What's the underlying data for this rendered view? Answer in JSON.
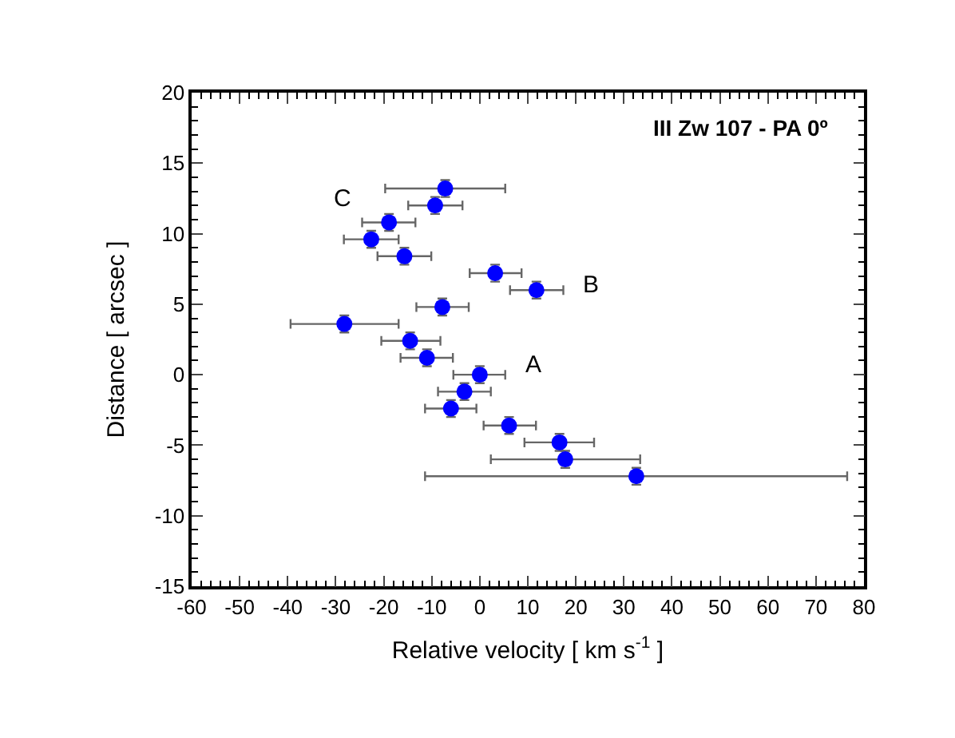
{
  "chart_data": {
    "type": "scatter",
    "title": "III Zw 107 - PA 0º",
    "xlabel": "Relative velocity [ km s$^{-1}$ ]",
    "ylabel": "Distance [ arcsec ]",
    "x": [
      -7.2,
      -9.3,
      -18.9,
      -22.6,
      -15.7,
      3.2,
      11.8,
      -7.8,
      -28.2,
      -14.5,
      -11.0,
      0.0,
      -3.2,
      -6.0,
      6.1,
      16.6,
      17.8,
      32.6
    ],
    "series": [
      {
        "color": "#0000ff",
        "values": [
          13.2,
          12.0,
          10.8,
          9.6,
          8.4,
          7.2,
          6.0,
          4.8,
          3.6,
          2.4,
          1.2,
          0.0,
          -1.2,
          -2.4,
          -3.6,
          -4.8,
          -6.0,
          -7.2
        ],
        "errors": [
          0.6,
          0.6,
          0.6,
          0.6,
          0.6,
          0.6,
          0.6,
          0.6,
          0.6,
          0.6,
          0.6,
          0.6,
          0.6,
          0.6,
          0.6,
          0.6,
          0.6,
          0.6
        ],
        "xerrors": [
          [
            -19.7,
            5.3
          ],
          [
            -14.9,
            -3.6
          ],
          [
            -24.5,
            -13.4
          ],
          [
            -28.3,
            -16.9
          ],
          [
            -21.3,
            -10.1
          ],
          [
            -2.1,
            8.7
          ],
          [
            6.3,
            17.4
          ],
          [
            -13.2,
            -2.3
          ],
          [
            -39.4,
            -16.9
          ],
          [
            -20.5,
            -8.2
          ],
          [
            -16.5,
            -5.6
          ],
          [
            -5.5,
            5.3
          ],
          [
            -8.7,
            2.3
          ],
          [
            -11.4,
            -0.7
          ],
          [
            0.8,
            11.7
          ],
          [
            9.3,
            23.8
          ],
          [
            2.3,
            33.4
          ],
          [
            -11.4,
            76.5
          ]
        ]
      }
    ],
    "annotations": [
      "C",
      "B",
      "A"
    ],
    "xlim": [
      -60,
      80
    ],
    "xticks": [
      -60,
      -50,
      -40,
      -30,
      -20,
      -10,
      0,
      10,
      20,
      30,
      40,
      50,
      60,
      70,
      80
    ],
    "ylim": [
      -15,
      20
    ],
    "yticks": [
      -15,
      -10,
      -5,
      0,
      5,
      10,
      15,
      20
    ],
    "marker": "circle",
    "legend": false
  }
}
